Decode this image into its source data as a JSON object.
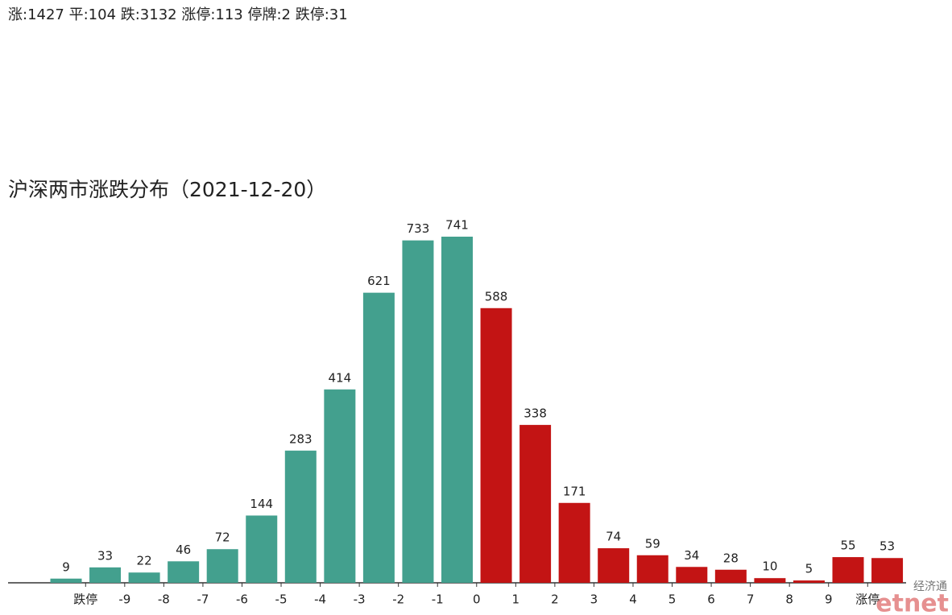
{
  "header": "涨:1427 平:104 跌:3132 涨停:113 停牌:2 跌停:31",
  "chart_data": {
    "type": "bar",
    "title": "沪深两市涨跌分布（2021-12-20）",
    "values": [
      9,
      33,
      22,
      46,
      72,
      144,
      283,
      414,
      621,
      733,
      741,
      588,
      338,
      171,
      74,
      59,
      34,
      28,
      10,
      5,
      55,
      53
    ],
    "colors": [
      "#43a08e",
      "#43a08e",
      "#43a08e",
      "#43a08e",
      "#43a08e",
      "#43a08e",
      "#43a08e",
      "#43a08e",
      "#43a08e",
      "#43a08e",
      "#43a08e",
      "#c31414",
      "#c31414",
      "#c31414",
      "#c31414",
      "#c31414",
      "#c31414",
      "#c31414",
      "#c31414",
      "#c31414",
      "#c31414",
      "#c31414"
    ],
    "xticks": [
      "跌停",
      "-9",
      "-8",
      "-7",
      "-6",
      "-5",
      "-4",
      "-3",
      "-2",
      "-1",
      "0",
      "1",
      "2",
      "3",
      "4",
      "5",
      "6",
      "7",
      "8",
      "9",
      "涨停"
    ],
    "ylim": [
      0,
      741
    ]
  },
  "watermark": {
    "top": "经济通",
    "logo": "etnet"
  }
}
